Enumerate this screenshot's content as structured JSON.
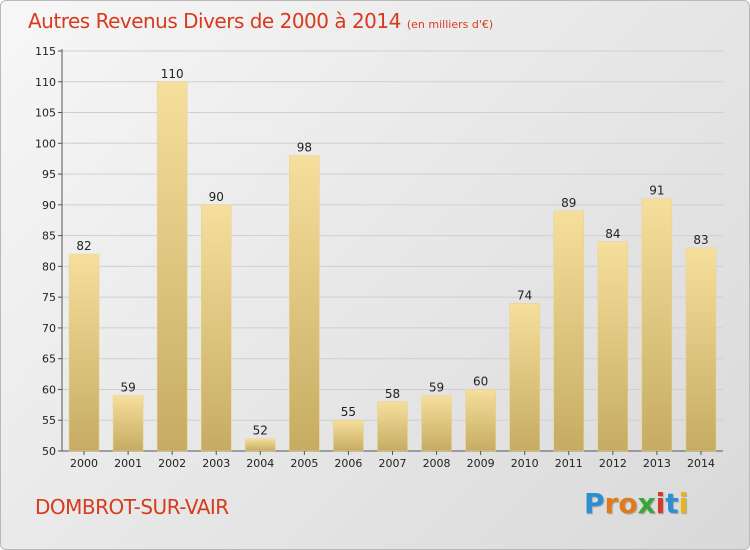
{
  "title": "Autres Revenus Divers de 2000 à 2014",
  "subtitle": "(en milliers d'€)",
  "location": "DOMBROT-SUR-VAIR",
  "brand": {
    "letters": [
      "P",
      "r",
      "o",
      "x",
      "i",
      "t",
      "i"
    ],
    "colors": [
      "#2c8fd0",
      "#e07b1b",
      "#e07b1b",
      "#3aa639",
      "#d8362b",
      "#2c8fd0",
      "#e8b31b"
    ]
  },
  "colors": {
    "title": "#d83a1e",
    "bar_light": "#f6df9c",
    "bar_dark": "#c6ac62",
    "grid": "#cfcfcf"
  },
  "chart_data": {
    "type": "bar",
    "title": "Autres Revenus Divers de 2000 à 2014",
    "subtitle": "(en milliers d'€)",
    "xlabel": "",
    "ylabel": "",
    "categories": [
      "2000",
      "2001",
      "2002",
      "2003",
      "2004",
      "2005",
      "2006",
      "2007",
      "2008",
      "2009",
      "2010",
      "2011",
      "2012",
      "2013",
      "2014"
    ],
    "values": [
      82,
      59,
      110,
      90,
      52,
      98,
      55,
      58,
      59,
      60,
      74,
      89,
      84,
      91,
      83
    ],
    "ylim": [
      50,
      115
    ],
    "yticks": [
      50,
      55,
      60,
      65,
      70,
      75,
      80,
      85,
      90,
      95,
      100,
      105,
      110,
      115
    ],
    "grid": true,
    "data_labels": true
  }
}
